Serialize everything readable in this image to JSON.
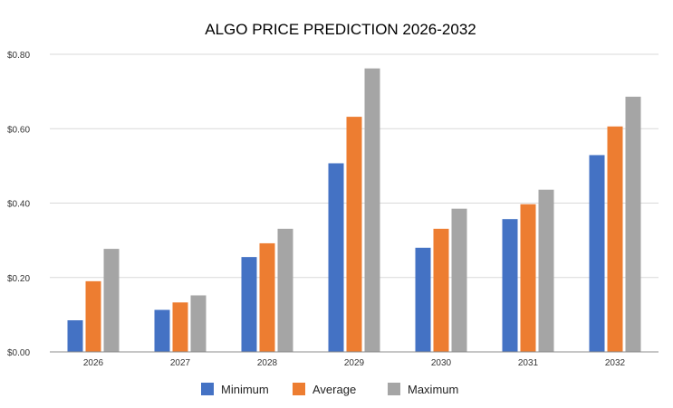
{
  "chart_data": {
    "type": "bar",
    "title": "ALGO PRICE PREDICTION 2026-2032",
    "xlabel": "",
    "ylabel": "",
    "categories": [
      "2026",
      "2027",
      "2028",
      "2029",
      "2030",
      "2031",
      "2032"
    ],
    "series": [
      {
        "name": "Minimum",
        "color": "#4472c4",
        "values": [
          0.085,
          0.113,
          0.255,
          0.507,
          0.28,
          0.357,
          0.529
        ]
      },
      {
        "name": "Average",
        "color": "#ed7d31",
        "values": [
          0.19,
          0.133,
          0.292,
          0.632,
          0.331,
          0.397,
          0.606
        ]
      },
      {
        "name": "Maximum",
        "color": "#a5a5a5",
        "values": [
          0.277,
          0.152,
          0.331,
          0.762,
          0.385,
          0.436,
          0.686
        ]
      }
    ],
    "ylim": [
      0,
      0.8
    ],
    "yticks": [
      {
        "value": 0.0,
        "label": "$0.00"
      },
      {
        "value": 0.2,
        "label": "$0.20"
      },
      {
        "value": 0.4,
        "label": "$0.40"
      },
      {
        "value": 0.6,
        "label": "$0.60"
      },
      {
        "value": 0.8,
        "label": "$0.80"
      }
    ],
    "grid": true,
    "legend_position": "bottom"
  }
}
